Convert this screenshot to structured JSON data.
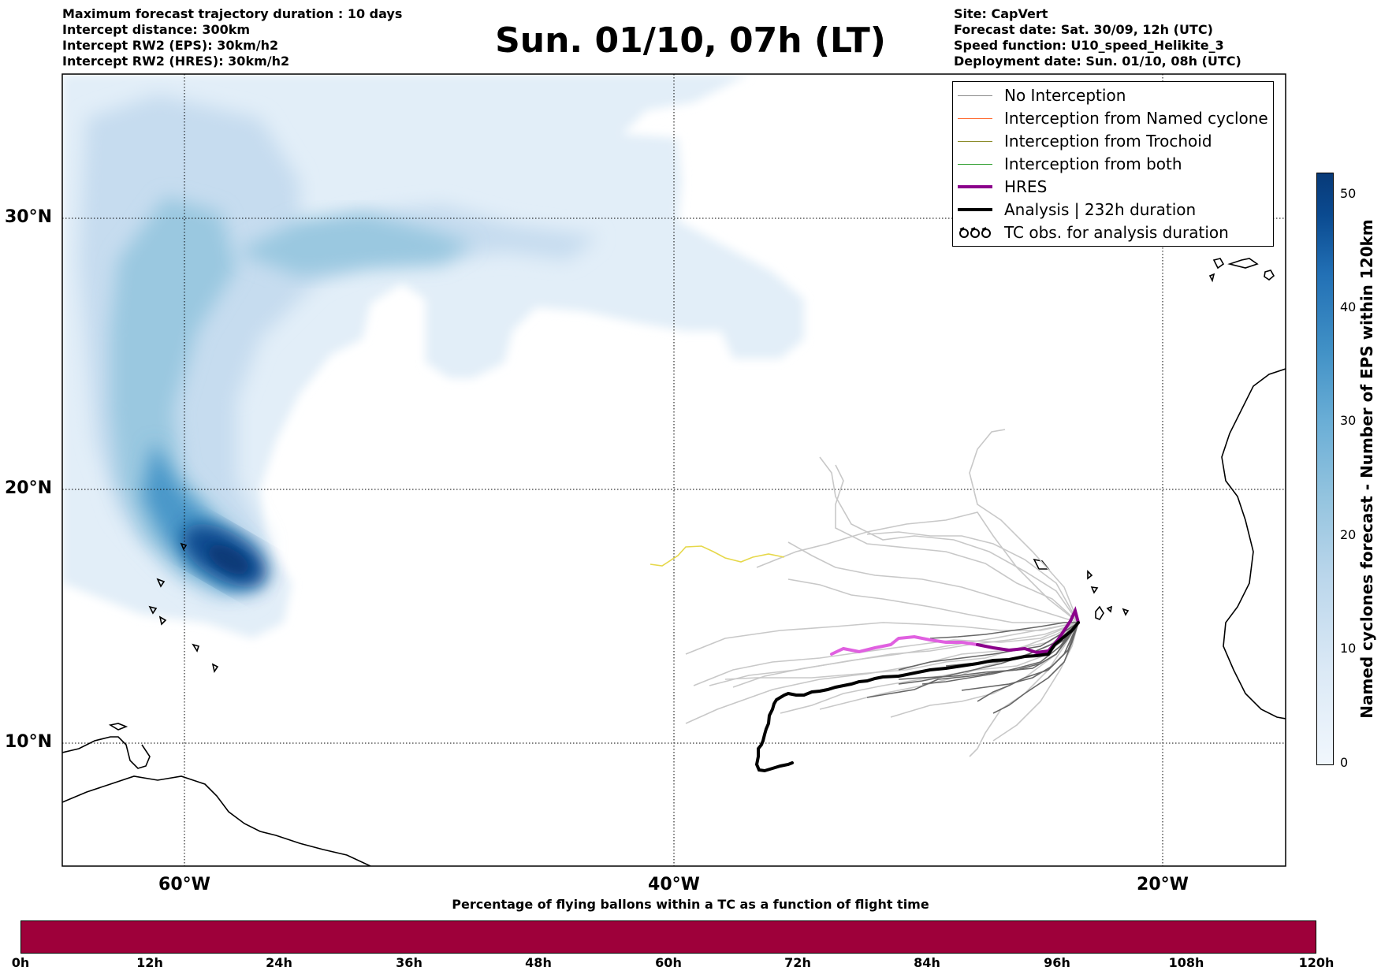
{
  "header": {
    "left_lines": [
      "Maximum forecast trajectory duration : 10 days",
      "Intercept distance: 300km",
      "Intercept RW2 (EPS):  30km/h2",
      "Intercept RW2 (HRES): 30km/h2"
    ],
    "title": "Sun. 01/10, 07h (LT)",
    "right_lines": [
      "Site: CapVert",
      "Forecast date: Sat. 30/09, 12h (UTC)",
      "Speed function: U10_speed_Helikite_3",
      "Deployment date: Sun. 01/10, 08h (UTC)"
    ]
  },
  "map": {
    "lat_labels": [
      "30°N",
      "20°N",
      "10°N"
    ],
    "lon_labels": [
      "60°W",
      "40°W",
      "20°W"
    ],
    "lat_lines_deg": [
      30,
      20,
      10
    ],
    "lon_lines_deg": [
      -60,
      -40,
      -20
    ],
    "density_colormap": "Blues",
    "site_lon_lat": [
      -23.5,
      14.9
    ],
    "hres_colors": [
      "#e060e0",
      "#8b008b"
    ],
    "analysis_color": "#000000",
    "trajectory_color_light": "#c8c8c8",
    "trajectory_color_dark": "#666666",
    "outlier_trajectory_color": "#e6d84a"
  },
  "legend": {
    "items": [
      {
        "label": "No Interception",
        "color": "#8a8a8a",
        "style": "thin"
      },
      {
        "label": "Interception from Named cyclone",
        "color": "#ff6a2f",
        "style": "thin"
      },
      {
        "label": "Interception from Trochoid",
        "color": "#8b8b2a",
        "style": "thin"
      },
      {
        "label": "Interception from both",
        "color": "#2e9e2e",
        "style": "thin"
      },
      {
        "label": "HRES",
        "color": "#8b008b",
        "style": "thick"
      },
      {
        "label": "Analysis | 232h duration",
        "color": "#000000",
        "style": "thick"
      },
      {
        "label": "TC obs. for analysis duration",
        "color": "#000000",
        "style": "symbol"
      }
    ]
  },
  "colorbar": {
    "label": "Named cyclones forecast - Number of EPS within 120km",
    "ticks": [
      "50",
      "40",
      "30",
      "20",
      "10",
      "0"
    ],
    "range": [
      0,
      52
    ]
  },
  "timebar": {
    "title": "Percentage of flying ballons within a TC as a function of flight time",
    "ticks": [
      "0h",
      "12h",
      "24h",
      "36h",
      "48h",
      "60h",
      "72h",
      "84h",
      "96h",
      "108h",
      "120h"
    ],
    "fill_color": "#9e003a"
  }
}
